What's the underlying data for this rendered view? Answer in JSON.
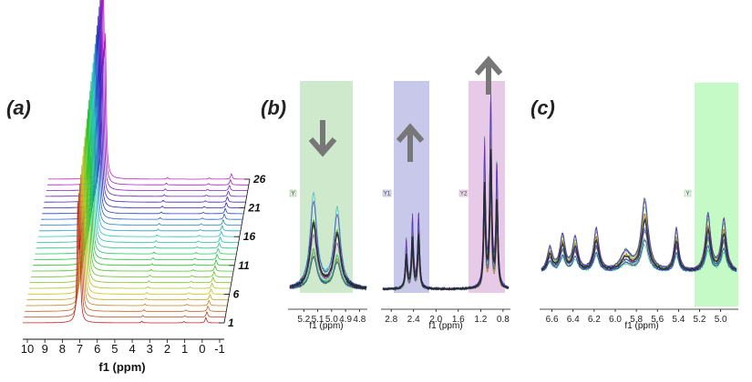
{
  "figure": {
    "panels": [
      {
        "id": "a",
        "label": "(a)"
      },
      {
        "id": "b",
        "label": "(b)"
      },
      {
        "id": "c",
        "label": "(c)"
      }
    ]
  },
  "chart_data": [
    {
      "panel": "(a)",
      "type": "line",
      "subtype": "stacked-spectra",
      "xlabel": "f1 (ppm)",
      "x_ticks": [
        "10",
        "9",
        "8",
        "7",
        "6",
        "5",
        "4",
        "3",
        "2",
        "1",
        "0",
        "-1"
      ],
      "xlim": [
        10,
        -1
      ],
      "spectrum_labels": [
        "1",
        "6",
        "11",
        "16",
        "21",
        "26"
      ],
      "spectrum_count": 26,
      "main_peak_ppm": 7.0,
      "minor_peak_ppm": 0.0
    },
    {
      "panel": "(b)",
      "type": "line",
      "subtype": "overlaid-spectra",
      "subpanels": [
        {
          "xlabel": "f1 (ppm)",
          "x_ticks": [
            "5.2",
            "5.1",
            "5.0",
            "4.9",
            "4.8"
          ],
          "xlim": [
            5.3,
            4.75
          ],
          "peaks_ppm": [
            5.13,
            4.96
          ],
          "region": {
            "tag": "Y",
            "color": "#9fd39a",
            "arrow": "down"
          }
        },
        {
          "xlabel": "f1 (ppm)",
          "x_ticks": [
            "2.8",
            "2.4",
            "2.0",
            "1.6",
            "1.2",
            "0.8"
          ],
          "xlim": [
            2.95,
            0.7
          ],
          "peaks_ppm": [
            2.53,
            2.42,
            2.31,
            1.13,
            1.02,
            0.91
          ],
          "regions": [
            {
              "tag": "Y1",
              "color": "#9a9ad8",
              "arrow": "up"
            },
            {
              "tag": "Y2",
              "color": "#d39fd6",
              "arrow": "up"
            }
          ]
        }
      ]
    },
    {
      "panel": "(c)",
      "type": "line",
      "subtype": "overlaid-spectra",
      "xlabel": "f1 (ppm)",
      "x_ticks": [
        "6.6",
        "6.4",
        "6.2",
        "6.0",
        "5.8",
        "5.6",
        "5.4",
        "5.2",
        "5.0"
      ],
      "xlim": [
        6.7,
        4.85
      ],
      "peaks_ppm": [
        6.62,
        6.5,
        6.38,
        6.18,
        5.9,
        5.72,
        5.42,
        5.12,
        4.97
      ],
      "region": {
        "tag": "Y",
        "color": "#9ef59e"
      }
    }
  ]
}
